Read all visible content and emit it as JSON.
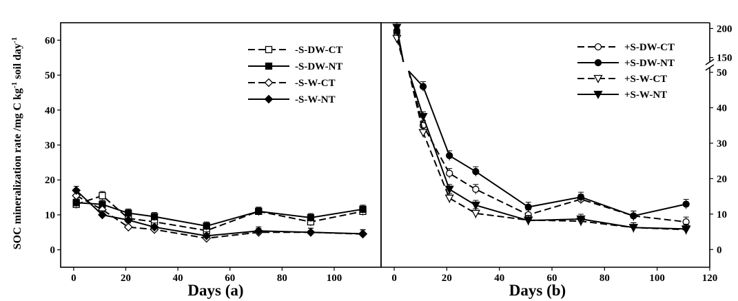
{
  "chart_data": [
    {
      "type": "line",
      "panel": "a",
      "xlabel": "Days (a)",
      "ylabel": "SOC mineralization rate /mg C kg-1 soil day-1",
      "ylabel_parts": [
        "SOC mineralization rate /mg C kg",
        "-1",
        " soil day",
        "-1"
      ],
      "xlim": [
        -5,
        118
      ],
      "ylim": [
        -5,
        65
      ],
      "xticks": [
        0,
        20,
        40,
        60,
        80,
        100
      ],
      "yticks": [
        0,
        10,
        20,
        30,
        40,
        50,
        60
      ],
      "legend_position": "top-right",
      "x": [
        1,
        11,
        21,
        31,
        51,
        71,
        91,
        111
      ],
      "series": [
        {
          "name": "-S-DW-CT",
          "marker": "square-open",
          "dash": true,
          "values": [
            13,
            15.5,
            9,
            8,
            5.5,
            11,
            8,
            11
          ]
        },
        {
          "name": "-S-DW-NT",
          "marker": "square-filled",
          "dash": false,
          "values": [
            13.5,
            13,
            10.5,
            9.5,
            6.8,
            11,
            9.2,
            11.6
          ]
        },
        {
          "name": "-S-W-CT",
          "marker": "diamond-open",
          "dash": true,
          "values": [
            15.5,
            11.5,
            6.5,
            5.8,
            3.3,
            5,
            5,
            4.5
          ]
        },
        {
          "name": "-S-W-NT",
          "marker": "diamond-filled",
          "dash": false,
          "values": [
            17,
            10,
            8.5,
            6.5,
            4,
            5.4,
            5,
            4.6
          ]
        }
      ]
    },
    {
      "type": "line",
      "panel": "b",
      "xlabel": "Days (b)",
      "xlim": [
        -5,
        120
      ],
      "xticks": [
        0,
        20,
        40,
        60,
        80,
        100,
        120
      ],
      "yticks": [
        0,
        10,
        20,
        30,
        40,
        50
      ],
      "yticks_upper": [
        150,
        200
      ],
      "axis_break": {
        "lower_max": 50,
        "upper_range": [
          140,
          210
        ]
      },
      "legend_position": "top-right",
      "x": [
        1,
        11,
        21,
        31,
        51,
        71,
        91,
        111
      ],
      "series": [
        {
          "name": "+S-DW-CT",
          "marker": "circle-open",
          "dash": true,
          "values": [
            193,
            35,
            21.5,
            17,
            9.8,
            14.2,
            9.5,
            7.8
          ]
        },
        {
          "name": "+S-DW-NT",
          "marker": "circle-filled",
          "dash": false,
          "values": [
            196,
            46,
            26.5,
            22,
            12,
            14.8,
            9.5,
            12.8
          ]
        },
        {
          "name": "+S-W-CT",
          "marker": "triangle-down-open",
          "dash": true,
          "values": [
            183,
            33,
            14.5,
            10.2,
            8.3,
            8,
            6.2,
            5.6
          ]
        },
        {
          "name": "+S-W-NT",
          "marker": "triangle-down-filled",
          "dash": false,
          "values": [
            202,
            37.5,
            17,
            12.5,
            8.2,
            8.6,
            6.2,
            5.8
          ]
        }
      ]
    }
  ]
}
